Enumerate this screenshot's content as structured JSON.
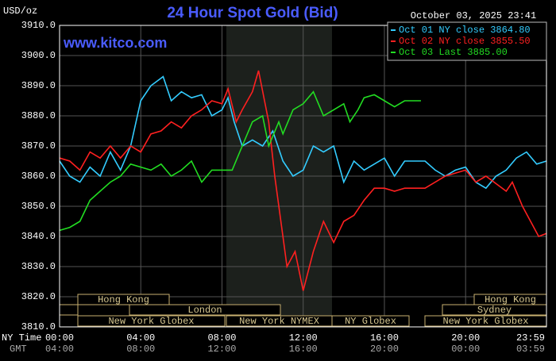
{
  "chart_data": {
    "type": "line",
    "title": "24 Hour Spot Gold (Bid)",
    "date": "October 03, 2025 23:41",
    "y_unit": "USD/oz",
    "watermark": "www.kitco.com",
    "x_row_label": "NY Time",
    "x2_row_label": "GMT",
    "xlim": [
      0,
      23.983
    ],
    "xticks": [
      {
        "value": 0,
        "label": "00:00"
      },
      {
        "value": 4,
        "label": "04:00"
      },
      {
        "value": 8,
        "label": "08:00"
      },
      {
        "value": 12,
        "label": "12:00"
      },
      {
        "value": 16,
        "label": "16:00"
      },
      {
        "value": 20,
        "label": "20:00"
      },
      {
        "value": 23.983,
        "label": "23:59"
      }
    ],
    "x2_labels": [
      "04:00",
      "08:00",
      "12:00",
      "16:00",
      "20:00",
      "00:00",
      "03:59"
    ],
    "ylim": [
      3810,
      3910
    ],
    "yticks": [
      {
        "value": 3810,
        "label": "3810.0"
      },
      {
        "value": 3820,
        "label": "3820.0"
      },
      {
        "value": 3830,
        "label": "3830.0"
      },
      {
        "value": 3840,
        "label": "3840.0"
      },
      {
        "value": 3850,
        "label": "3850.0"
      },
      {
        "value": 3860,
        "label": "3860.0"
      },
      {
        "value": 3870,
        "label": "3870.0"
      },
      {
        "value": 3880,
        "label": "3880.0"
      },
      {
        "value": 3890,
        "label": "3890.0"
      },
      {
        "value": 3900,
        "label": "3900.0"
      },
      {
        "value": 3910,
        "label": "3910.0"
      }
    ],
    "grid": true,
    "sessions": [
      "Hong Kong",
      "London",
      "New York Globex",
      "New York NYMEX",
      "NY Globex",
      "Hong Kong",
      "Sydney",
      "New York Globex"
    ],
    "series": [
      {
        "name": "Oct 01 NY close 3864.80",
        "color": "#33ccff",
        "x": [
          0,
          0.5,
          1,
          1.5,
          2,
          2.5,
          3,
          3.5,
          4,
          4.5,
          5.1,
          5.5,
          6,
          6.5,
          7,
          7.5,
          8,
          8.3,
          8.6,
          9,
          9.5,
          10,
          10.5,
          11,
          11.5,
          12,
          12.5,
          13,
          13.5,
          14,
          14.5,
          15,
          15.5,
          16,
          16.5,
          17,
          17.5,
          18,
          18.5,
          19,
          19.5,
          20,
          20.5,
          21,
          21.5,
          22,
          22.5,
          23,
          23.5,
          23.983
        ],
        "values": [
          3865,
          3860,
          3858,
          3863,
          3860,
          3868,
          3862,
          3870,
          3885,
          3890,
          3893,
          3885,
          3888,
          3886,
          3887,
          3880,
          3882,
          3886,
          3878,
          3870,
          3872,
          3870,
          3875,
          3865,
          3860,
          3862,
          3870,
          3868,
          3870,
          3858,
          3865,
          3862,
          3864,
          3866,
          3860,
          3865,
          3865,
          3865,
          3862,
          3860,
          3862,
          3863,
          3858,
          3856,
          3860,
          3862,
          3866,
          3868,
          3864,
          3865
        ]
      },
      {
        "name": "Oct 02 NY close 3855.50",
        "color": "#ff2020",
        "x": [
          0,
          0.5,
          1,
          1.5,
          2,
          2.5,
          3,
          3.5,
          4,
          4.5,
          5,
          5.5,
          6,
          6.5,
          7,
          7.5,
          8,
          8.3,
          8.7,
          9,
          9.5,
          9.8,
          10.3,
          10.6,
          11,
          11.2,
          11.6,
          12,
          12.5,
          13,
          13.5,
          14,
          14.5,
          15,
          15.5,
          16,
          16.5,
          17,
          18,
          19,
          20,
          20.5,
          21,
          22,
          22.3,
          22.8,
          23.2,
          23.6,
          23.983
        ],
        "values": [
          3866,
          3865,
          3862,
          3868,
          3866,
          3870,
          3866,
          3870,
          3868,
          3874,
          3875,
          3878,
          3876,
          3880,
          3882,
          3885,
          3884,
          3889,
          3878,
          3882,
          3888,
          3895,
          3878,
          3860,
          3840,
          3830,
          3835,
          3822,
          3835,
          3845,
          3838,
          3845,
          3847,
          3852,
          3856,
          3856,
          3855,
          3856,
          3856,
          3860,
          3862,
          3858,
          3860,
          3855,
          3858,
          3850,
          3845,
          3840,
          3841
        ]
      },
      {
        "name": "Oct 03 Last 3885.00",
        "color": "#22dd22",
        "x": [
          0,
          0.5,
          1,
          1.5,
          2,
          2.5,
          3,
          3.5,
          4,
          4.5,
          5,
          5.5,
          6,
          6.5,
          7,
          7.5,
          8,
          8.5,
          9,
          9.5,
          10,
          10.3,
          10.8,
          11,
          11.5,
          12,
          12.5,
          13,
          13.5,
          14,
          14.3,
          14.7,
          15,
          15.5,
          16,
          16.5,
          17,
          17.8
        ],
        "values": [
          3842,
          3843,
          3845,
          3852,
          3855,
          3858,
          3860,
          3864,
          3863,
          3862,
          3864,
          3860,
          3862,
          3865,
          3858,
          3862,
          3862,
          3862,
          3870,
          3878,
          3880,
          3870,
          3878,
          3874,
          3882,
          3884,
          3888,
          3880,
          3882,
          3884,
          3878,
          3882,
          3886,
          3887,
          3885,
          3883,
          3885,
          3885
        ]
      }
    ]
  }
}
